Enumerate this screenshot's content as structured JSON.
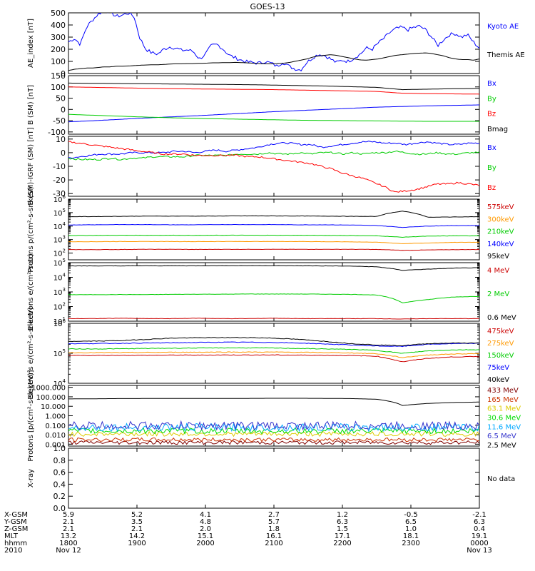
{
  "title": "GOES-13",
  "footer": {
    "row_labels": [
      "X-GSM",
      "Y-GSM",
      "Z-GSM",
      "MLT",
      "hhmm",
      "2010"
    ],
    "columns": [
      [
        "5.9",
        "2.1",
        "2.1",
        "13.2",
        "1800",
        "Nov 12"
      ],
      [
        "5.2",
        "3.5",
        "2.1",
        "14.2",
        "1900",
        ""
      ],
      [
        "4.1",
        "4.8",
        "2.0",
        "15.1",
        "2000",
        ""
      ],
      [
        "2.7",
        "5.7",
        "1.8",
        "16.1",
        "2100",
        ""
      ],
      [
        "1.2",
        "6.3",
        "1.5",
        "17.1",
        "2200",
        ""
      ],
      [
        "-0.5",
        "6.5",
        "1.0",
        "18.1",
        "2300",
        ""
      ],
      [
        "-2.1",
        "6.3",
        "0.4",
        "19.1",
        "0000",
        "Nov 13"
      ]
    ]
  },
  "chart_data": [
    {
      "type": "line",
      "ylabel": "AE_index [nT]",
      "ylim": [
        0,
        500
      ],
      "yticks": [
        "0",
        "100",
        "200",
        "300",
        "400",
        "500"
      ],
      "series": [
        {
          "name": "Kyoto AE",
          "color": "#0000ff",
          "values": [
            260,
            290,
            240,
            380,
            440,
            490,
            520,
            510,
            470,
            480,
            500,
            470,
            290,
            200,
            170,
            160,
            200,
            220,
            210,
            190,
            195,
            180,
            120,
            160,
            230,
            240,
            200,
            150,
            130,
            110,
            95,
            90,
            85,
            100,
            85,
            60,
            95,
            60,
            40,
            30,
            90,
            130,
            160,
            150,
            120,
            90,
            110,
            100,
            130,
            160,
            210,
            200,
            250,
            290,
            340,
            370,
            380,
            360,
            380,
            390,
            360,
            300,
            230,
            280,
            320,
            330,
            300,
            320,
            260,
            210
          ]
        },
        {
          "name": "Themis AE",
          "color": "#000000",
          "values": [
            25,
            35,
            40,
            45,
            45,
            50,
            55,
            55,
            60,
            60,
            62,
            65,
            68,
            70,
            72,
            72,
            75,
            78,
            80,
            80,
            82,
            82,
            84,
            85,
            88,
            88,
            90,
            90,
            92,
            90,
            88,
            85,
            82,
            80,
            80,
            82,
            85,
            90,
            100,
            110,
            120,
            135,
            145,
            150,
            155,
            150,
            140,
            130,
            120,
            112,
            110,
            115,
            120,
            130,
            140,
            150,
            155,
            160,
            165,
            168,
            170,
            165,
            155,
            145,
            130,
            120,
            115,
            115,
            110,
            120
          ]
        }
      ]
    },
    {
      "type": "line",
      "ylabel": "B (SM) [nT]",
      "ylim": [
        -110,
        150
      ],
      "yticks": [
        "-100",
        "-50",
        "0",
        "50",
        "100",
        "150"
      ],
      "series": [
        {
          "name": "Bx",
          "color": "#0000ff",
          "values": [
            -55,
            -50,
            -44,
            -38,
            -33,
            -28,
            -22,
            -16,
            -10,
            -5,
            0,
            5,
            10,
            13,
            16,
            18,
            20
          ]
        },
        {
          "name": "By",
          "color": "#00cc00",
          "values": [
            -22,
            -26,
            -30,
            -34,
            -37,
            -40,
            -42,
            -44,
            -46,
            -48,
            -49,
            -50,
            -51,
            -52,
            -53,
            -53,
            -53
          ]
        },
        {
          "name": "Bz",
          "color": "#ff0000",
          "values": [
            100,
            98,
            96,
            94,
            92,
            91,
            90,
            89,
            88,
            86,
            84,
            82,
            80,
            72,
            70,
            69,
            68
          ]
        },
        {
          "name": "Bmag",
          "color": "#000000",
          "values": [
            117,
            116,
            115,
            114,
            113,
            112,
            111,
            110,
            108,
            106,
            104,
            101,
            98,
            88,
            90,
            92,
            93
          ]
        }
      ]
    },
    {
      "type": "line",
      "ylabel": "B (SM)-IGRF (SM) [nT]",
      "ylim": [
        -32,
        12
      ],
      "yticks": [
        "-30",
        "-20",
        "-10",
        "0",
        "10"
      ],
      "series": [
        {
          "name": "Bx",
          "color": "#0000ff",
          "values": [
            -4,
            -3,
            -2,
            -1,
            -1,
            -1,
            0,
            0,
            0,
            0,
            1,
            1,
            0,
            1,
            2,
            1,
            2,
            3,
            4,
            6,
            7,
            7,
            6,
            6,
            4,
            5,
            6,
            7,
            8,
            8,
            7,
            7,
            6,
            7,
            8,
            7,
            6,
            6,
            7,
            7
          ]
        },
        {
          "name": "By",
          "color": "#00cc00",
          "values": [
            -4,
            -5,
            -5,
            -5,
            -4,
            -5,
            -4,
            -4,
            -3,
            -3,
            -3,
            -3,
            -2,
            -2,
            -2,
            -2,
            -1,
            -1,
            -1,
            0,
            -1,
            -1,
            0,
            -1,
            0,
            0,
            -1,
            0,
            -1,
            0,
            0,
            1,
            0,
            -1,
            -1,
            0,
            -1,
            -1,
            0,
            0
          ]
        },
        {
          "name": "Bz",
          "color": "#ff0000",
          "values": [
            8,
            7,
            6,
            5,
            4,
            3,
            2,
            1,
            0,
            -1,
            -1,
            -1,
            -2,
            -2,
            -2,
            -2,
            -2,
            -3,
            -3,
            -4,
            -5,
            -6,
            -7,
            -8,
            -10,
            -12,
            -15,
            -17,
            -19,
            -22,
            -25,
            -29,
            -28,
            -27,
            -25,
            -23,
            -23,
            -22,
            -23,
            -24
          ]
        }
      ]
    },
    {
      "type": "line",
      "ylabel": "Protons p/(cm²-s-sr-keV)",
      "ylog": true,
      "ylim_exp": [
        1.5,
        6
      ],
      "yticks_exp": [
        2,
        3,
        4,
        5,
        6
      ],
      "series": [
        {
          "name": "575keV",
          "color": "#cc0000",
          "values": [
            180,
            180,
            185,
            190,
            190,
            185,
            190,
            190,
            190,
            190,
            190,
            190,
            185,
            160,
            170,
            180,
            185
          ]
        },
        {
          "name": "300keV",
          "color": "#ff9900",
          "values": [
            700,
            700,
            720,
            720,
            720,
            710,
            720,
            720,
            720,
            720,
            700,
            680,
            640,
            500,
            560,
            620,
            640
          ]
        },
        {
          "name": "210keV",
          "color": "#00cc00",
          "values": [
            2000,
            2050,
            2100,
            2100,
            2100,
            2050,
            2100,
            2100,
            2100,
            2100,
            2050,
            2000,
            1900,
            1500,
            1800,
            1900,
            1900
          ]
        },
        {
          "name": "140keV",
          "color": "#0000ff",
          "values": [
            12000,
            12500,
            13000,
            13000,
            12500,
            12500,
            13000,
            13000,
            13000,
            12500,
            12500,
            12000,
            11000,
            8000,
            10000,
            11000,
            11000
          ]
        },
        {
          "name": "95keV",
          "color": "#000000",
          "values": [
            50000,
            51000,
            53000,
            55000,
            55000,
            55000,
            56000,
            57000,
            57000,
            56000,
            55000,
            53000,
            52000,
            130000,
            45000,
            48000,
            50000
          ]
        }
      ]
    },
    {
      "type": "line",
      "ylabel": "Electrons e/(cm²-s-sr)",
      "ylog": true,
      "ylim_exp": [
        1,
        5
      ],
      "yticks_exp": [
        1,
        2,
        3,
        4,
        5
      ],
      "series": [
        {
          "name": "4 MeV",
          "color": "#cc0000",
          "values": [
            15,
            15,
            16,
            15,
            15,
            16,
            15,
            15,
            16,
            15,
            15,
            15,
            15,
            14,
            15,
            15,
            15
          ]
        },
        {
          "name": "2 MeV",
          "color": "#00cc00",
          "values": [
            650,
            650,
            660,
            660,
            680,
            700,
            700,
            720,
            720,
            720,
            700,
            680,
            620,
            180,
            300,
            450,
            500
          ]
        },
        {
          "name": "0.6 MeV",
          "color": "#000000",
          "values": [
            60000,
            60000,
            60000,
            61000,
            61000,
            61000,
            62000,
            62000,
            62000,
            61000,
            60000,
            58000,
            52000,
            30000,
            36000,
            42000,
            45000
          ]
        }
      ]
    },
    {
      "type": "line",
      "ylabel": "Electrons e/(cm²-s-sr-keV)",
      "ylog": true,
      "ylim_exp": [
        4,
        6
      ],
      "yticks_exp": [
        4,
        5,
        6
      ],
      "series": [
        {
          "name": "475keV",
          "color": "#cc0000",
          "values": [
            85000,
            85000,
            86000,
            86000,
            87000,
            87000,
            88000,
            88000,
            88000,
            87000,
            86000,
            84000,
            80000,
            52000,
            68000,
            76000,
            78000
          ]
        },
        {
          "name": "275keV",
          "color": "#ff9900",
          "values": [
            105000,
            105000,
            106000,
            107000,
            108000,
            109000,
            110000,
            110000,
            110000,
            108000,
            106000,
            103000,
            97000,
            72000,
            88000,
            95000,
            98000
          ]
        },
        {
          "name": "150keV",
          "color": "#00cc00",
          "values": [
            140000,
            140000,
            142000,
            145000,
            148000,
            150000,
            152000,
            152000,
            150000,
            145000,
            140000,
            135000,
            125000,
            100000,
            120000,
            130000,
            132000
          ]
        },
        {
          "name": "75keV",
          "color": "#0000ff",
          "values": [
            210000,
            212000,
            215000,
            220000,
            225000,
            230000,
            235000,
            235000,
            230000,
            220000,
            205000,
            190000,
            175000,
            170000,
            200000,
            210000,
            215000
          ]
        },
        {
          "name": "40keV",
          "color": "#000000",
          "values": [
            250000,
            255000,
            265000,
            290000,
            320000,
            330000,
            335000,
            335000,
            320000,
            290000,
            250000,
            210000,
            190000,
            180000,
            210000,
            220000,
            220000
          ]
        }
      ]
    },
    {
      "type": "line",
      "ylabel": "Protons [p/(cm²-s-sr-keV)]",
      "ylog": true,
      "ylim_exp": [
        -3.2,
        3.2
      ],
      "yticks": [
        "0.001",
        "0.010",
        "0.100",
        "1.000",
        "10.000",
        "100.000",
        "1000.000"
      ],
      "series": [
        {
          "name": "433 MeV",
          "color": "#800000",
          "level": 0.0015,
          "noise": 0.2
        },
        {
          "name": "165 MeV",
          "color": "#cc3300",
          "level": 0.003,
          "noise": 0.2
        },
        {
          "name": "63.1 MeV",
          "color": "#ddcc00",
          "level": 0.012,
          "noise": 0.25
        },
        {
          "name": "30.6 MeV",
          "color": "#00dd00",
          "level": 0.025,
          "noise": 0.3
        },
        {
          "name": "11.6 MeV",
          "color": "#00aaff",
          "level": 0.06,
          "noise": 0.4
        },
        {
          "name": "6.5 MeV",
          "color": "#3333cc",
          "level": 0.09,
          "noise": 0.45
        },
        {
          "name": "2.5 MeV",
          "color": "#000000",
          "values": [
            60,
            62,
            65,
            66,
            66,
            66,
            67,
            68,
            70,
            70,
            68,
            65,
            55,
            12,
            20,
            25,
            28
          ]
        }
      ]
    },
    {
      "type": "line",
      "ylabel": "X-ray",
      "ylim": [
        0,
        1
      ],
      "yticks": [
        "0.0",
        "0.2",
        "0.4",
        "0.6",
        "0.8",
        "1.0"
      ],
      "series": [],
      "note": "No data"
    }
  ]
}
